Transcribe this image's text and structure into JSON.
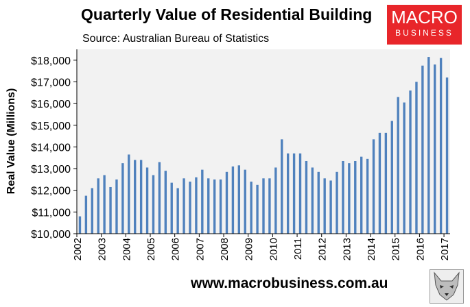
{
  "header": {
    "title": "Quarterly Value of Residential Building",
    "subtitle": "Source: Australian Bureau of Statistics"
  },
  "brand": {
    "line1": "MACRO",
    "line2": "BUSINESS",
    "bg_color": "#e8262a"
  },
  "footer": {
    "url": "www.macrobusiness.com.au",
    "logo_icon": "wolf-icon"
  },
  "chart_data": {
    "type": "bar",
    "title": "Quarterly Value of Residential Building",
    "xlabel": "",
    "ylabel": "Real Value (Millions)",
    "ylim": [
      10000,
      18500
    ],
    "y_ticks": [
      10000,
      11000,
      12000,
      13000,
      14000,
      15000,
      16000,
      17000,
      18000
    ],
    "y_tick_labels": [
      "$10,000",
      "$11,000",
      "$12,000",
      "$13,000",
      "$14,000",
      "$15,000",
      "$16,000",
      "$17,000",
      "$18,000"
    ],
    "x_tick_labels": [
      "2002",
      "2003",
      "2004",
      "2005",
      "2006",
      "2007",
      "2008",
      "2009",
      "2010",
      "2011",
      "2012",
      "2013",
      "2014",
      "2015",
      "2016",
      "2017"
    ],
    "bar_color": "#4f81bd",
    "grid": false,
    "values": [
      10800,
      11750,
      12100,
      12550,
      12700,
      12150,
      12500,
      13250,
      13650,
      13400,
      13400,
      13050,
      12700,
      13300,
      12900,
      12350,
      12100,
      12550,
      12400,
      12600,
      12950,
      12550,
      12500,
      12500,
      12850,
      13100,
      13150,
      12950,
      12400,
      12250,
      12550,
      12550,
      13050,
      14350,
      13700,
      13700,
      13700,
      13350,
      13050,
      12850,
      12550,
      12450,
      12850,
      13350,
      13250,
      13350,
      13550,
      13450,
      14350,
      14650,
      14650,
      15200,
      16300,
      16050,
      16600,
      17000,
      17750,
      18150,
      17800,
      18100,
      17200
    ]
  }
}
